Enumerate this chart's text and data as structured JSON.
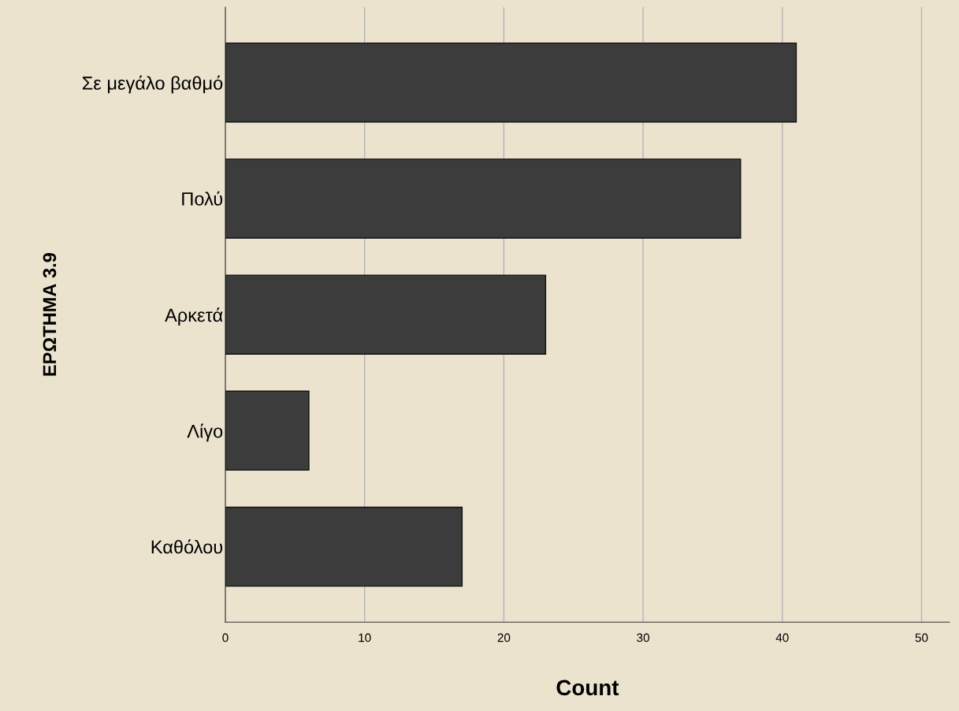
{
  "chart_data": {
    "type": "bar",
    "orientation": "horizontal",
    "xlabel": "Count",
    "ylabel": "ΕΡΩΤΗΜΑ 3.9",
    "categories": [
      "Σε μεγάλο βαθμό",
      "Πολύ",
      "Αρκετά",
      "Λίγο",
      "Καθόλου"
    ],
    "values": [
      41,
      37,
      23,
      6,
      17
    ],
    "color": "#3c3c3c",
    "xlim": [
      0,
      52
    ],
    "xticks": [
      0,
      10,
      20,
      30,
      40,
      50
    ],
    "grid": "x"
  }
}
